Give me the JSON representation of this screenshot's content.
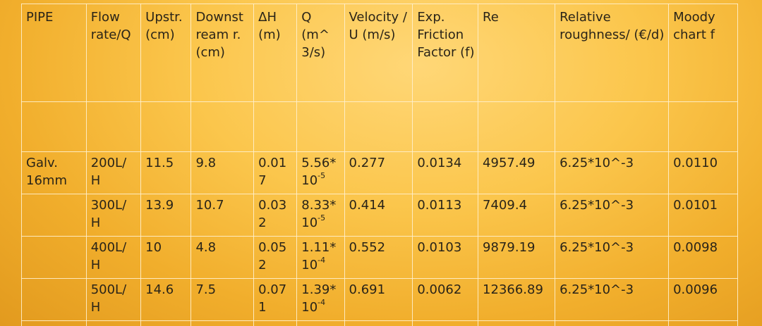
{
  "table": {
    "headers": {
      "pipe": "PIPE",
      "flow": "Flow rate/Q",
      "upstream": "Upstr. (cm)",
      "downstream": "Downst ream r.(cm)",
      "dh": "ΔH (m)",
      "q": "Q (m^ 3/s)",
      "velocity": "Velocity / U (m/s)",
      "exp_friction": "Exp. Friction Factor (f)",
      "re": "Re",
      "rel_rough": "Relative roughness/ (€/d)",
      "moody": "Moody chart f"
    },
    "pipe_label": "Galv. 16mm",
    "rows": [
      {
        "flow": "200L/ H",
        "upstream": "11.5",
        "downstream": "9.8",
        "dh": "0.017",
        "q_base": "5.56* 10",
        "q_exp": "-5",
        "velocity": "0.277",
        "exp_friction": "0.0134",
        "re": "4957.49",
        "rel_rough": "6.25*10^-3",
        "moody": "0.0110"
      },
      {
        "flow": "300L/ H",
        "upstream": "13.9",
        "downstream": "10.7",
        "dh": "0.032",
        "q_base": "8.33* 10",
        "q_exp": "-5",
        "velocity": "0.414",
        "exp_friction": "0.0113",
        "re": "7409.4",
        "rel_rough": "6.25*10^-3",
        "moody": "0.0101"
      },
      {
        "flow": "400L/ H",
        "upstream": "10",
        "downstream": "4.8",
        "dh": "0.052",
        "q_base": "1.11* 10",
        "q_exp": "-4",
        "velocity": "0.552",
        "exp_friction": "0.0103",
        "re": "9879.19",
        "rel_rough": "6.25*10^-3",
        "moody": "0.0098"
      },
      {
        "flow": "500L/ H",
        "upstream": "14.6",
        "downstream": "7.5",
        "dh": "0.071",
        "q_base": "1.39* 10",
        "q_exp": "-4",
        "velocity": "0.691",
        "exp_friction": "0.0062",
        "re": "12366.89",
        "rel_rough": "6.25*10^-3",
        "moody": "0.0096"
      }
    ]
  }
}
